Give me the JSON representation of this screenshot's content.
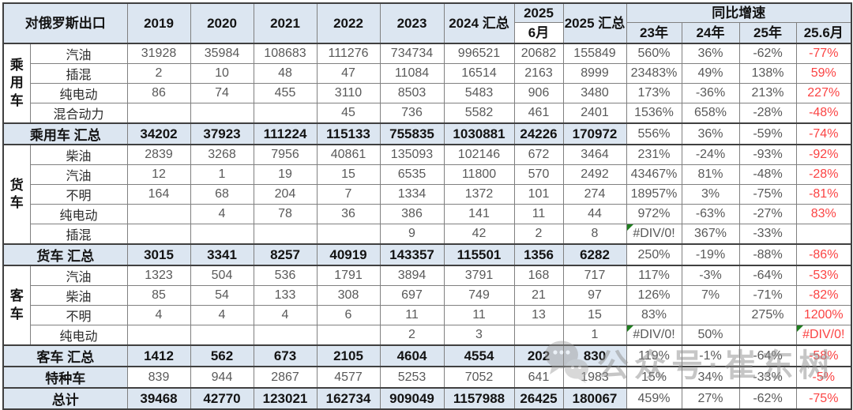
{
  "chart_data": {
    "type": "table",
    "title": "对俄罗斯出口",
    "header": {
      "corner": "对俄罗斯出口",
      "years": [
        "2019",
        "2020",
        "2021",
        "2022",
        "2023"
      ],
      "col_2024_total": "2024 汇总",
      "col_2025": "2025",
      "col_2025_jun": "6月",
      "col_2025_total": "2025 汇总",
      "growth_title": "同比增速",
      "growth_cols": [
        "23年",
        "24年",
        "25年",
        "25.6月"
      ]
    },
    "rows": [
      {
        "group": {
          "label": "乘用车",
          "span": 4
        },
        "label": "汽油",
        "values": [
          "31928",
          "35984",
          "108683",
          "111276",
          "734734",
          "996521",
          "20682",
          "155849",
          "560%",
          "36%",
          "-62%",
          "-77%"
        ]
      },
      {
        "label": "插混",
        "values": [
          "2",
          "10",
          "48",
          "47",
          "11084",
          "16514",
          "2163",
          "8999",
          "23483%",
          "49%",
          "138%",
          "59%"
        ]
      },
      {
        "label": "纯电动",
        "values": [
          "86",
          "74",
          "455",
          "3110",
          "8503",
          "5483",
          "906",
          "3480",
          "173%",
          "-36%",
          "213%",
          "227%"
        ]
      },
      {
        "label": "混合动力",
        "values": [
          "",
          "",
          "",
          "45",
          "736",
          "5582",
          "461",
          "2401",
          "1536%",
          "658%",
          "-28%",
          "-48%"
        ]
      },
      {
        "label": "乘用车 汇总",
        "type": "summary",
        "values": [
          "34202",
          "37923",
          "111224",
          "115133",
          "755835",
          "1030881",
          "24226",
          "170972",
          "556%",
          "36%",
          "-59%",
          "-74%"
        ]
      },
      {
        "group": {
          "label": "货车",
          "span": 5
        },
        "label": "柴油",
        "values": [
          "2839",
          "3268",
          "7956",
          "40861",
          "135093",
          "102146",
          "672",
          "3464",
          "231%",
          "-24%",
          "-93%",
          "-92%"
        ]
      },
      {
        "label": "汽油",
        "values": [
          "12",
          "1",
          "19",
          "15",
          "6535",
          "11800",
          "570",
          "2492",
          "43467%",
          "81%",
          "-48%",
          "-28%"
        ]
      },
      {
        "label": "不明",
        "values": [
          "164",
          "68",
          "204",
          "7",
          "1334",
          "1372",
          "101",
          "274",
          "18957%",
          "3%",
          "-75%",
          "-81%"
        ]
      },
      {
        "label": "纯电动",
        "values": [
          "",
          "4",
          "78",
          "36",
          "386",
          "141",
          "11",
          "44",
          "972%",
          "-63%",
          "-27%",
          "83%"
        ]
      },
      {
        "label": "插混",
        "flags": [
          8
        ],
        "values": [
          "",
          "",
          "",
          "",
          "9",
          "42",
          "2",
          "8",
          "#DIV/0!",
          "367%",
          "-33%",
          ""
        ]
      },
      {
        "label": "货车 汇总",
        "type": "summary",
        "values": [
          "3015",
          "3341",
          "8257",
          "40919",
          "143357",
          "115501",
          "1356",
          "6282",
          "250%",
          "-19%",
          "-88%",
          "-86%"
        ]
      },
      {
        "group": {
          "label": "客车",
          "span": 4
        },
        "label": "汽油",
        "values": [
          "1323",
          "504",
          "536",
          "1791",
          "3894",
          "3791",
          "168",
          "717",
          "117%",
          "-3%",
          "-64%",
          "-53%"
        ]
      },
      {
        "label": "柴油",
        "values": [
          "85",
          "54",
          "133",
          "308",
          "697",
          "749",
          "21",
          "97",
          "126%",
          "7%",
          "-71%",
          "-82%"
        ]
      },
      {
        "label": "不明",
        "values": [
          "4",
          "4",
          "4",
          "6",
          "11",
          "11",
          "13",
          "15",
          "83%",
          "",
          "275%",
          "1200%"
        ]
      },
      {
        "label": "纯电动",
        "flags": [
          8,
          11
        ],
        "values": [
          "",
          "",
          "",
          "",
          "2",
          "3",
          "",
          "1",
          "#DIV/0!",
          "50%",
          "",
          "#DIV/0!"
        ]
      },
      {
        "label": "客车 汇总",
        "type": "summary",
        "values": [
          "1412",
          "562",
          "673",
          "2105",
          "4604",
          "4554",
          "202",
          "830",
          "119%",
          "-1%",
          "-64%",
          "-58%"
        ]
      },
      {
        "label": "特种车",
        "type": "special",
        "values": [
          "839",
          "944",
          "2867",
          "4577",
          "5253",
          "7052",
          "641",
          "1983",
          "15%",
          "34%",
          "-33%",
          "-5%"
        ]
      },
      {
        "label": "总计",
        "type": "total",
        "values": [
          "39468",
          "42770",
          "123021",
          "162734",
          "909049",
          "1157988",
          "26425",
          "180067",
          "459%",
          "27%",
          "-62%",
          "-75%"
        ]
      }
    ]
  },
  "watermark": {
    "icon": "wechat-icon",
    "text": "公众号·崔东树"
  },
  "colors": {
    "header_fill": "#dce6f1",
    "negative_red": "#fb4343",
    "flag_green": "#1e7e1e",
    "grid_line": "#808080"
  }
}
